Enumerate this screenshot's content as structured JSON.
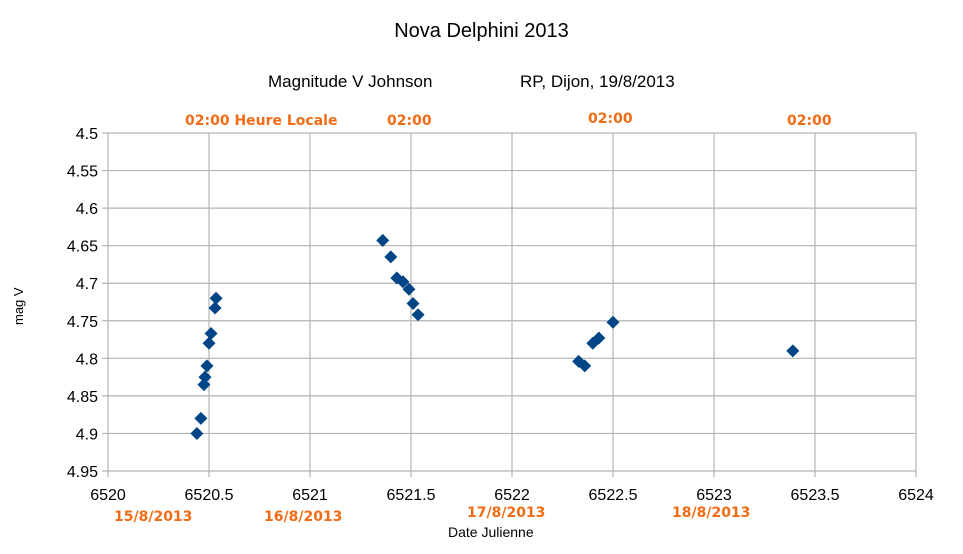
{
  "chart_data": {
    "type": "scatter",
    "title": "Nova Delphini 2013",
    "subtitle_left": "Magnitude V Johnson",
    "subtitle_right": "RP, Dijon, 19/8/2013",
    "xlabel": "Date Julienne",
    "ylabel": "mag V",
    "xlim": [
      6520,
      6524
    ],
    "ylim": [
      4.5,
      4.95
    ],
    "y_inverted": true,
    "grid": true,
    "x_ticks": [
      "6520",
      "6520.5",
      "6521",
      "6521.5",
      "6522",
      "6522.5",
      "6523",
      "6523.5",
      "6524"
    ],
    "y_ticks": [
      "4.5",
      "4.55",
      "4.6",
      "4.65",
      "4.7",
      "4.75",
      "4.8",
      "4.85",
      "4.9",
      "4.95"
    ],
    "marker_color": "#004586",
    "annotation_color": "#f26b15",
    "top_annotations": [
      {
        "text": "02:00 Heure Locale",
        "x": 6520.5
      },
      {
        "text": "02:00",
        "x": 6521.5
      },
      {
        "text": "02:00",
        "x": 6522.5
      },
      {
        "text": "02:00",
        "x": 6523.5
      }
    ],
    "bottom_annotations": [
      {
        "text": "15/8/2013",
        "x": 6520.25
      },
      {
        "text": "16/8/2013",
        "x": 6521.0
      },
      {
        "text": "17/8/2013",
        "x": 6521.7
      },
      {
        "text": "18/8/2013",
        "x": 6522.7
      }
    ],
    "series": [
      {
        "name": "mag V",
        "x": [
          6520.44,
          6520.46,
          6520.475,
          6520.48,
          6520.49,
          6520.5,
          6520.51,
          6520.53,
          6520.535,
          6521.36,
          6521.4,
          6521.43,
          6521.46,
          6521.49,
          6521.51,
          6521.535,
          6522.33,
          6522.36,
          6522.4,
          6522.43,
          6522.5,
          6523.39
        ],
        "y": [
          4.9,
          4.88,
          4.835,
          4.825,
          4.81,
          4.78,
          4.767,
          4.733,
          4.72,
          4.643,
          4.665,
          4.693,
          4.698,
          4.708,
          4.727,
          4.742,
          4.804,
          4.81,
          4.78,
          4.773,
          4.752,
          4.79
        ]
      }
    ]
  }
}
